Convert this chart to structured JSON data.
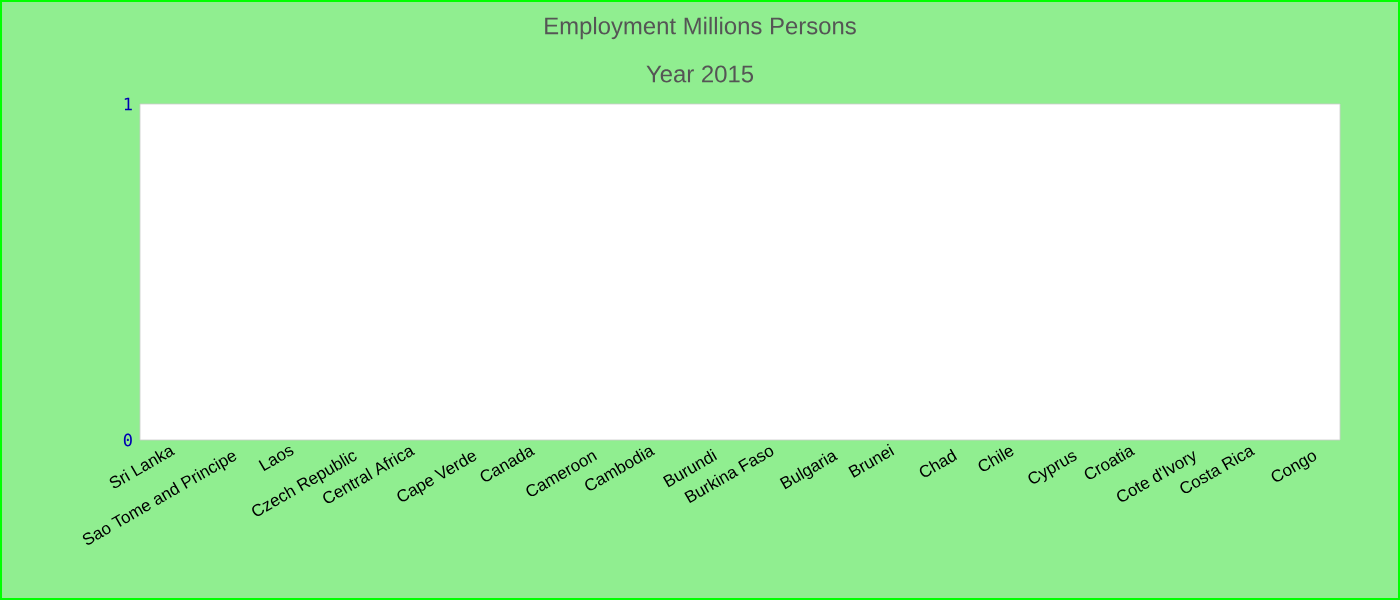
{
  "chart_data": {
    "type": "bar",
    "title": "Employment Millions Persons",
    "subtitle": "Year 2015",
    "categories": [
      "Sri Lanka",
      "Sao Tome and Principe",
      "Laos",
      "Czech Republic",
      "Central Africa",
      "Cape Verde",
      "Canada",
      "Cameroon",
      "Cambodia",
      "Burundi",
      "Burkina Faso",
      "Bulgaria",
      "Brunei",
      "Chad",
      "Chile",
      "Cyprus",
      "Croatia",
      "Cote d'Ivory",
      "Costa Rica",
      "Congo"
    ],
    "values": [
      0,
      0,
      0,
      0,
      0,
      0,
      0,
      0,
      0,
      0,
      0,
      0,
      0,
      0,
      0,
      0,
      0,
      0,
      0,
      0
    ],
    "ylim": [
      0,
      1
    ],
    "yticks": [
      0,
      1
    ]
  }
}
